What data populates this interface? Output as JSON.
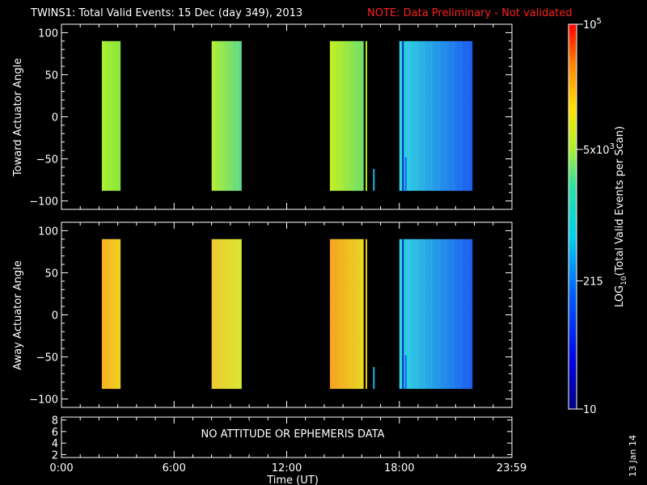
{
  "title": {
    "main": "TWINS1: Total Valid Events: 15 Dec (day 349), 2013",
    "note": "NOTE: Data Preliminary - Not validated",
    "note_color": "#ff2020"
  },
  "side_date": "13 Jan 14",
  "message": "NO ATTITUDE OR EPHEMERIS DATA",
  "chart_data": [
    {
      "type": "heatmap",
      "name": "toward",
      "ylabel": "Toward Actuator Angle",
      "ylim": [
        -110,
        110
      ],
      "yticks": [
        "100",
        "50",
        "0",
        "−50",
        "−100"
      ],
      "ytick_values": [
        100,
        50,
        0,
        -50,
        -100
      ],
      "angle_range": [
        -88,
        90
      ],
      "blocks": [
        {
          "t0": 2.15,
          "t1": 3.15,
          "color": "#8ae63c",
          "color2": "#a8f030"
        },
        {
          "t0": 8.0,
          "t1": 9.6,
          "color": "#5ad98a",
          "color2": "#b4ee30"
        },
        {
          "t0": 14.3,
          "t1": 16.1,
          "color": "#6ddf6a",
          "color2": "#c4f020",
          "lines": [
            {
              "t": 16.2,
              "color": "#b0f000"
            },
            {
              "t": 16.6,
              "color": "#20b0e0",
              "a0": -88,
              "a1": -62
            }
          ]
        },
        {
          "t0": 18.0,
          "t1": 21.9,
          "color": "#1a5cf0",
          "color2": "#30d8e0",
          "lines": [
            {
              "t": 18.15,
              "color": "#0028c0"
            },
            {
              "t": 18.3,
              "color": "#1060ff",
              "a0": -88,
              "a1": -48
            }
          ]
        }
      ]
    },
    {
      "type": "heatmap",
      "name": "away",
      "ylabel": "Away Actuator Angle",
      "ylim": [
        -110,
        110
      ],
      "yticks": [
        "100",
        "50",
        "0",
        "−50",
        "−100"
      ],
      "ytick_values": [
        100,
        50,
        0,
        -50,
        -100
      ],
      "angle_range": [
        -88,
        90
      ],
      "blocks": [
        {
          "t0": 2.15,
          "t1": 3.15,
          "color": "#f0d020",
          "color2": "#f8b020"
        },
        {
          "t0": 8.0,
          "t1": 9.6,
          "color": "#d8e830",
          "color2": "#f0c830"
        },
        {
          "t0": 14.3,
          "t1": 16.1,
          "color": "#e8d820",
          "color2": "#f8a020",
          "lines": [
            {
              "t": 16.2,
              "color": "#f0d000"
            },
            {
              "t": 16.6,
              "color": "#20b0e0",
              "a0": -88,
              "a1": -62
            }
          ]
        },
        {
          "t0": 18.0,
          "t1": 21.9,
          "color": "#1a5cf0",
          "color2": "#30d8e0",
          "lines": [
            {
              "t": 18.15,
              "color": "#0028c0"
            },
            {
              "t": 18.3,
              "color": "#1060ff",
              "a0": -88,
              "a1": -48
            }
          ]
        }
      ]
    },
    {
      "type": "line",
      "name": "ephemeris",
      "yticks": [
        "8",
        "6",
        "4",
        "2"
      ],
      "ytick_values": [
        8,
        6,
        4,
        2
      ],
      "ylim": [
        1.5,
        8.5
      ]
    }
  ],
  "xaxis": {
    "label": "Time (UT)",
    "xlim": [
      0,
      24
    ],
    "ticks": [
      {
        "v": 0,
        "label": "0:00"
      },
      {
        "v": 6,
        "label": "6:00"
      },
      {
        "v": 12,
        "label": "12:00"
      },
      {
        "v": 18,
        "label": "18:00"
      },
      {
        "v": 23.98,
        "label": "23:59"
      }
    ]
  },
  "colorbar": {
    "label": "LOG10(Total Valid Events per Scan)",
    "label_main": "LOG",
    "label_sub": "10",
    "label_rest": "(Total Valid Events per Scan)",
    "ticks": [
      {
        "v": 100000,
        "label": "10",
        "sup": "5"
      },
      {
        "v": 5000,
        "label": "5x10",
        "sup": "3"
      },
      {
        "v": 215,
        "label": "215",
        "sup": ""
      },
      {
        "v": 10,
        "label": "10",
        "sup": ""
      }
    ],
    "range": [
      10,
      100000
    ]
  }
}
